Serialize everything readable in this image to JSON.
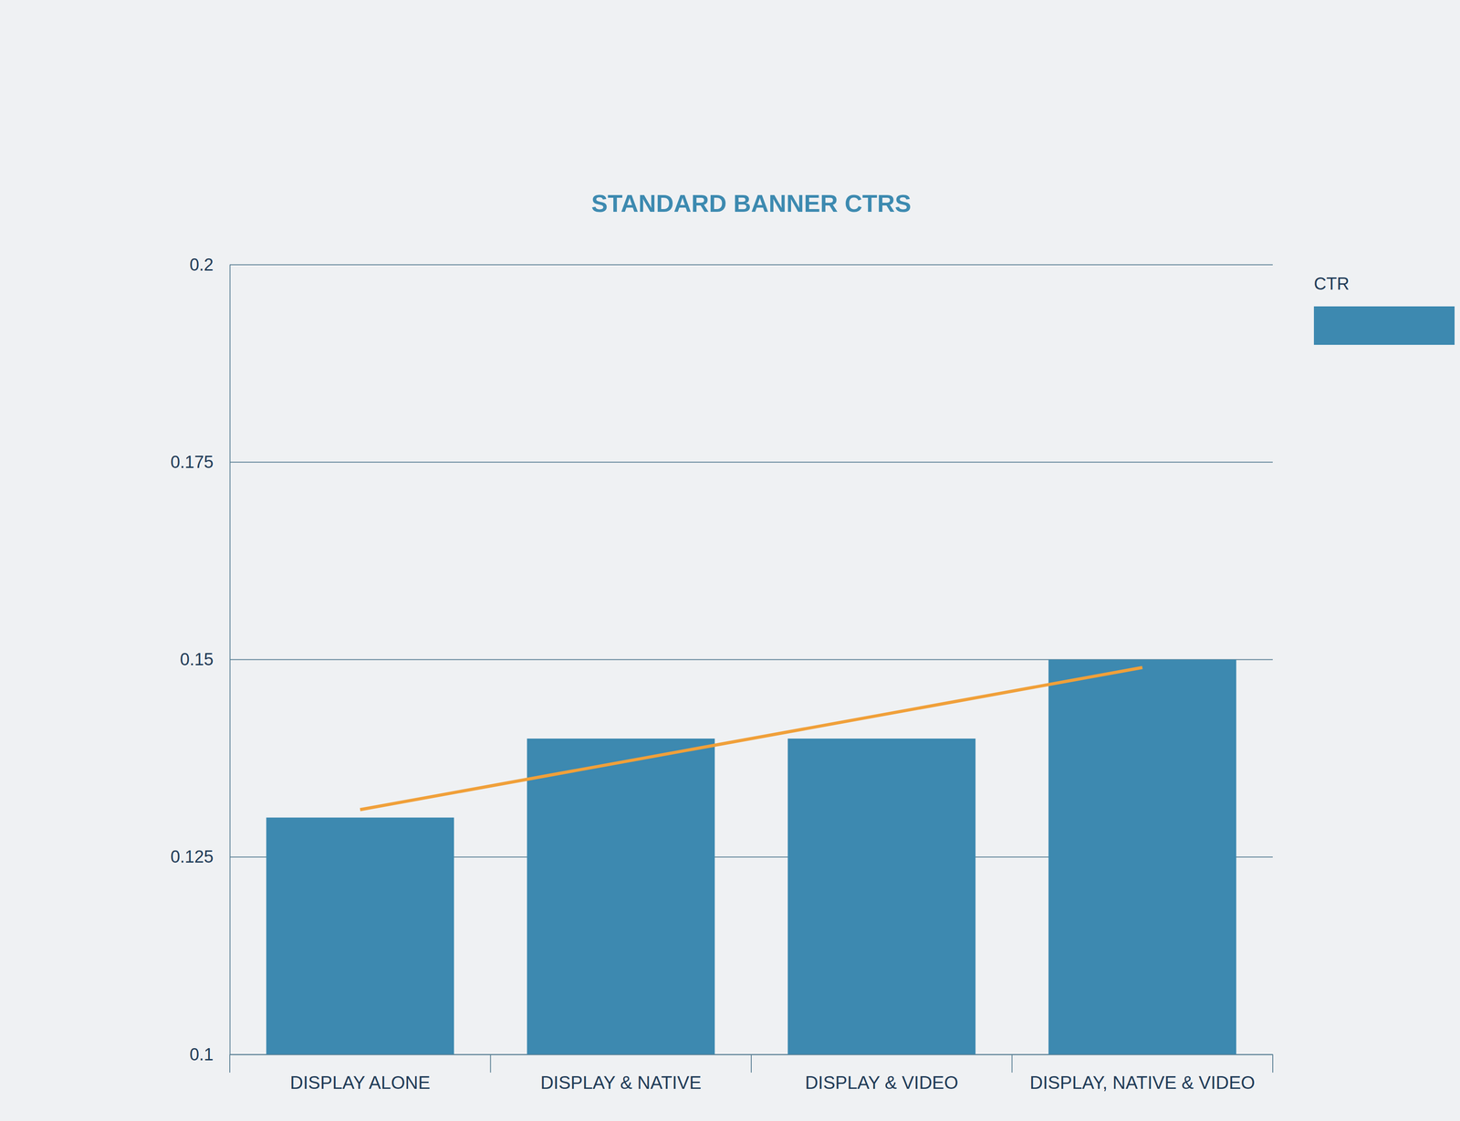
{
  "chart_data": {
    "type": "bar",
    "title": "STANDARD BANNER CTRS",
    "categories": [
      "DISPLAY ALONE",
      "DISPLAY & NATIVE",
      "DISPLAY & VIDEO",
      "DISPLAY, NATIVE & VIDEO"
    ],
    "series": [
      {
        "name": "CTR",
        "type": "bar",
        "color": "#3d89b0",
        "values": [
          0.13,
          0.14,
          0.14,
          0.15
        ]
      },
      {
        "type": "line",
        "color": "#f0a03a",
        "values": [
          0.131,
          0.137,
          0.143,
          0.149
        ]
      }
    ],
    "ylim": [
      0.1,
      0.2
    ],
    "yticks": [
      0.1,
      0.125,
      0.15,
      0.175,
      0.2
    ],
    "grid": true,
    "legend": "right"
  }
}
